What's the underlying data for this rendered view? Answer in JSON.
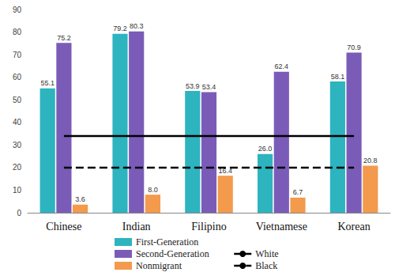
{
  "chart_data": {
    "type": "bar",
    "categories": [
      "Chinese",
      "Indian",
      "Filipino",
      "Vietnamese",
      "Korean"
    ],
    "series": [
      {
        "name": "First-Generation",
        "type": "bar",
        "color": "#2db4bf",
        "data_labels": true,
        "values": [
          55.1,
          79.2,
          53.9,
          26.0,
          58.1
        ],
        "value_labels": [
          "55.1",
          "79.2",
          "53.9",
          "26.0",
          "58.1"
        ]
      },
      {
        "name": "Second-Generation",
        "type": "bar",
        "color": "#7a5cb8",
        "data_labels": true,
        "values": [
          75.2,
          80.3,
          53.4,
          62.4,
          70.9
        ],
        "value_labels": [
          "75.2",
          "80.3",
          "53.4",
          "62.4",
          "70.9"
        ]
      },
      {
        "name": "Nonmigrant",
        "type": "bar",
        "color": "#f39a4c",
        "data_labels": true,
        "values": [
          3.6,
          8.0,
          16.4,
          6.7,
          20.8
        ],
        "value_labels": [
          "3.6",
          "8.0",
          "16.4",
          "6.7",
          "20.8"
        ]
      },
      {
        "name": "White",
        "type": "line",
        "color": "#000000",
        "line_style": "solid",
        "values": [
          34,
          34,
          34,
          34,
          34
        ]
      },
      {
        "name": "Black",
        "type": "line",
        "color": "#000000",
        "line_style": "dashed",
        "values": [
          20,
          20,
          20,
          20,
          20
        ]
      }
    ],
    "ylim": [
      0,
      90
    ],
    "yticks": [
      0,
      10,
      20,
      30,
      40,
      50,
      60,
      70,
      80,
      90
    ],
    "grid": false,
    "legend": "bottom"
  }
}
